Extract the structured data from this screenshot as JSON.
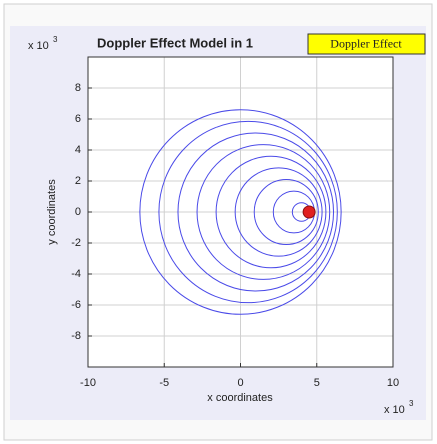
{
  "chart_data": {
    "type": "circles",
    "title": "Doppler Effect Model in 1",
    "legend": "Doppler Effect",
    "xlabel": "x coordinates",
    "ylabel": "y coordinates",
    "x_multiplier": {
      "base": "x 10",
      "exponent": "3"
    },
    "y_multiplier": {
      "base": "x 10",
      "exponent": "3"
    },
    "xlim": [
      -10,
      10
    ],
    "ylim": [
      -10,
      10
    ],
    "xticks": [
      -10,
      -5,
      0,
      5,
      10
    ],
    "yticks": [
      -8,
      -6,
      -4,
      -2,
      0,
      2,
      4,
      6,
      8
    ],
    "grid": true,
    "color": "#4a4ae8",
    "circles": [
      {
        "cx": 0,
        "cy": 0,
        "r": 6.6
      },
      {
        "cx": 0.5,
        "cy": 0,
        "r": 5.85
      },
      {
        "cx": 1,
        "cy": 0,
        "r": 5.1
      },
      {
        "cx": 1.5,
        "cy": 0,
        "r": 4.35
      },
      {
        "cx": 2,
        "cy": 0,
        "r": 3.6
      },
      {
        "cx": 2.5,
        "cy": 0,
        "r": 2.85
      },
      {
        "cx": 3,
        "cy": 0,
        "r": 2.1
      },
      {
        "cx": 3.5,
        "cy": 0,
        "r": 1.35
      },
      {
        "cx": 4,
        "cy": 0,
        "r": 0.6
      }
    ],
    "source": {
      "x": 4.5,
      "y": 0,
      "color": "#e02020"
    }
  }
}
